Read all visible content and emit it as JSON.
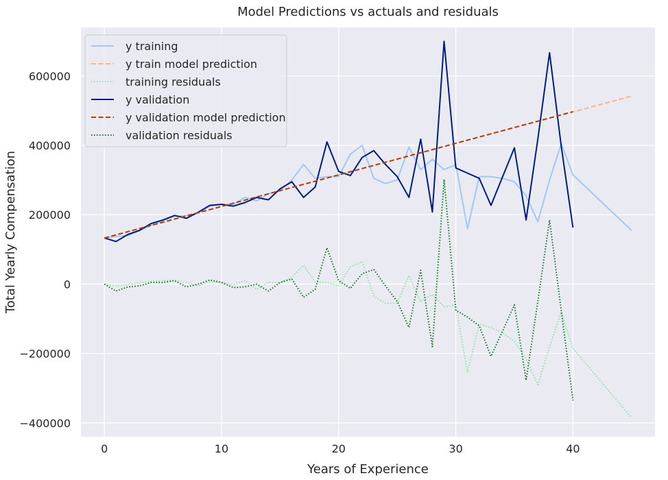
{
  "chart_data": {
    "type": "line",
    "title": "Model Predictions vs actuals and residuals",
    "xlabel": "Years of Experience",
    "ylabel": "Total Yearly Compensation",
    "xlim": [
      -2,
      47
    ],
    "ylim": [
      -440000,
      740000
    ],
    "xticks": [
      0,
      10,
      20,
      30,
      40
    ],
    "yticks": [
      -400000,
      -200000,
      0,
      200000,
      400000,
      600000
    ],
    "ytick_labels": [
      "−400000",
      "−200000",
      "0",
      "200000",
      "400000",
      "600000"
    ],
    "grid": true,
    "legend_position": "top-left",
    "series": [
      {
        "name": "y training",
        "color": "#a1c9f4",
        "style": "solid",
        "x": [
          0,
          1,
          2,
          3,
          4,
          5,
          6,
          7,
          8,
          9,
          10,
          11,
          12,
          13,
          14,
          15,
          16,
          17,
          18,
          19,
          20,
          21,
          22,
          23,
          24,
          25,
          26,
          27,
          28,
          29,
          30,
          31,
          32,
          33,
          34,
          35,
          36,
          37,
          38,
          39,
          40,
          45
        ],
        "y": [
          133000,
          138000,
          140000,
          155000,
          170000,
          183000,
          195000,
          198000,
          205000,
          225000,
          230000,
          230000,
          250000,
          240000,
          260000,
          270000,
          300000,
          345000,
          305000,
          310000,
          310000,
          375000,
          400000,
          305000,
          290000,
          300000,
          395000,
          330000,
          360000,
          330000,
          345000,
          160000,
          310000,
          310000,
          305000,
          295000,
          255000,
          180000,
          300000,
          405000,
          315000,
          155000
        ]
      },
      {
        "name": "y train model prediction",
        "color": "#ffb482",
        "style": "dashed",
        "x": [
          0,
          45
        ],
        "y": [
          133000,
          542000
        ]
      },
      {
        "name": "training residuals",
        "color": "#8de5a1",
        "style": "dotted",
        "x": [
          0,
          1,
          2,
          3,
          4,
          5,
          6,
          7,
          8,
          9,
          10,
          11,
          12,
          13,
          14,
          15,
          16,
          17,
          18,
          19,
          20,
          21,
          22,
          23,
          24,
          25,
          26,
          27,
          28,
          29,
          30,
          31,
          32,
          33,
          34,
          35,
          36,
          37,
          38,
          39,
          40,
          45
        ],
        "y": [
          0,
          -5000,
          -2000,
          5000,
          8000,
          10000,
          12000,
          5000,
          -5000,
          8000,
          5000,
          -2000,
          10000,
          -15000,
          5000,
          5000,
          20000,
          55000,
          5000,
          5000,
          -5000,
          50000,
          65000,
          -35000,
          -55000,
          -55000,
          25000,
          -50000,
          -30000,
          -65000,
          -60000,
          -255000,
          -115000,
          -125000,
          -140000,
          -165000,
          -215000,
          -290000,
          -180000,
          -80000,
          -185000,
          -385000
        ]
      },
      {
        "name": "y validation",
        "color": "#001c7f",
        "style": "solid",
        "x": [
          0,
          1,
          2,
          3,
          4,
          5,
          6,
          7,
          8,
          9,
          10,
          11,
          12,
          13,
          14,
          15,
          16,
          17,
          18,
          19,
          20,
          21,
          22,
          23,
          24,
          25,
          26,
          27,
          28,
          29,
          30,
          31,
          32,
          33,
          34,
          35,
          36,
          37,
          38,
          39,
          40
        ],
        "y": [
          133000,
          123000,
          143000,
          155000,
          175000,
          185000,
          198000,
          190000,
          207000,
          227000,
          230000,
          225000,
          235000,
          250000,
          243000,
          275000,
          295000,
          250000,
          280000,
          410000,
          325000,
          313000,
          365000,
          385000,
          345000,
          310000,
          250000,
          418000,
          208000,
          700000,
          335000,
          320000,
          305000,
          227000,
          310000,
          393000,
          185000,
          418000,
          667000,
          398000,
          163000
        ]
      },
      {
        "name": "y validation model prediction",
        "color": "#b1400d",
        "style": "dashed",
        "x": [
          0,
          40
        ],
        "y": [
          133000,
          497000
        ]
      },
      {
        "name": "validation residuals",
        "color": "#12711c",
        "style": "dotted",
        "x": [
          0,
          1,
          2,
          3,
          4,
          5,
          6,
          7,
          8,
          9,
          10,
          11,
          12,
          13,
          14,
          15,
          16,
          17,
          18,
          19,
          20,
          21,
          22,
          23,
          24,
          25,
          26,
          27,
          28,
          29,
          30,
          31,
          32,
          33,
          34,
          35,
          36,
          37,
          38,
          39,
          40
        ],
        "y": [
          0,
          -20000,
          -8000,
          -5000,
          5000,
          5000,
          10000,
          -8000,
          0,
          12000,
          5000,
          -10000,
          -8000,
          0,
          -20000,
          5000,
          15000,
          -38000,
          -15000,
          105000,
          10000,
          -12000,
          30000,
          42000,
          -5000,
          -50000,
          -125000,
          40000,
          -180000,
          302000,
          -75000,
          -95000,
          -120000,
          -208000,
          -135000,
          -60000,
          -277000,
          -50000,
          185000,
          -75000,
          -335000
        ]
      }
    ]
  }
}
